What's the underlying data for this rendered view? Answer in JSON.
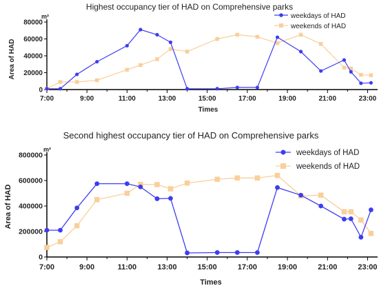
{
  "chart_data": [
    {
      "type": "line",
      "title": "Highest occupancy tier of HAD on Comprehensive parks",
      "xlabel": "Times",
      "ylabel": "Area of HAD",
      "unit": "m²",
      "xlim": [
        7,
        23.5
      ],
      "ylim": [
        0,
        80000
      ],
      "x_ticks": [
        "7:00",
        "9:00",
        "11:00",
        "13:00",
        "15:00",
        "17:00",
        "19:00",
        "21:00",
        "23:00"
      ],
      "y_ticks": [
        "0",
        "20000",
        "40000",
        "60000",
        "80000"
      ],
      "legend_position": "top-right",
      "series": [
        {
          "name": "weekdays of HAD",
          "color": "#3d3df0",
          "marker": "circle",
          "x": [
            7,
            7.67,
            8.5,
            9.5,
            11,
            11.67,
            12.5,
            13.17,
            14,
            15.5,
            16.5,
            17.5,
            18.5,
            19.67,
            20.67,
            21.83,
            22.17,
            22.67,
            23.17
          ],
          "y": [
            1000,
            1000,
            18000,
            33000,
            52000,
            71000,
            65000,
            56000,
            1000,
            1000,
            2500,
            2500,
            62000,
            45000,
            22000,
            35000,
            21000,
            7500,
            8000
          ]
        },
        {
          "name": "weekends of HAD",
          "color": "#f9cf9a",
          "marker": "square",
          "x": [
            7,
            7.67,
            8.5,
            9.5,
            11,
            11.67,
            12.5,
            13.17,
            14,
            15.5,
            16.5,
            17.5,
            18.5,
            19.67,
            20.67,
            21.83,
            22.17,
            22.67,
            23.17
          ],
          "y": [
            1000,
            9000,
            9000,
            11000,
            23500,
            29000,
            36000,
            48000,
            45000,
            60000,
            65000,
            62500,
            55000,
            65000,
            54000,
            26000,
            25000,
            17500,
            17000
          ]
        }
      ]
    },
    {
      "type": "line",
      "title": "Second highest occupancy tier of HAD on Comprehensive parks",
      "xlabel": "Times",
      "ylabel": "Area of HAD",
      "unit": "m²",
      "xlim": [
        7,
        23.5
      ],
      "ylim": [
        0,
        800000
      ],
      "x_ticks": [
        "7:00",
        "9:00",
        "11:00",
        "13:00",
        "15:00",
        "17:00",
        "19:00",
        "21:00",
        "23:00"
      ],
      "y_ticks": [
        "0",
        "200000",
        "400000",
        "600000",
        "800000"
      ],
      "legend_position": "top-right",
      "series": [
        {
          "name": "weekdays of HAD",
          "color": "#3d3df0",
          "marker": "circle",
          "x": [
            7,
            7.67,
            8.5,
            9.5,
            11,
            11.67,
            12.5,
            13.17,
            14,
            15.5,
            16.5,
            17.5,
            18.5,
            19.67,
            20.67,
            21.83,
            22.17,
            22.67,
            23.17
          ],
          "y": [
            210000,
            210000,
            385000,
            575000,
            575000,
            550000,
            457000,
            460000,
            32000,
            35000,
            35000,
            35000,
            545000,
            485000,
            400000,
            297000,
            300000,
            155000,
            370000
          ]
        },
        {
          "name": "weekends of HAD",
          "color": "#f9cf9a",
          "marker": "square",
          "x": [
            7,
            7.67,
            8.5,
            9.5,
            11,
            11.67,
            12.5,
            13.17,
            14,
            15.5,
            16.5,
            17.5,
            18.5,
            19.67,
            20.67,
            21.83,
            22.17,
            22.67,
            23.17
          ],
          "y": [
            75000,
            120000,
            245000,
            450000,
            500000,
            570000,
            568000,
            535000,
            580000,
            610000,
            620000,
            620000,
            640000,
            480000,
            485000,
            355000,
            355000,
            290000,
            185000
          ]
        }
      ]
    }
  ]
}
